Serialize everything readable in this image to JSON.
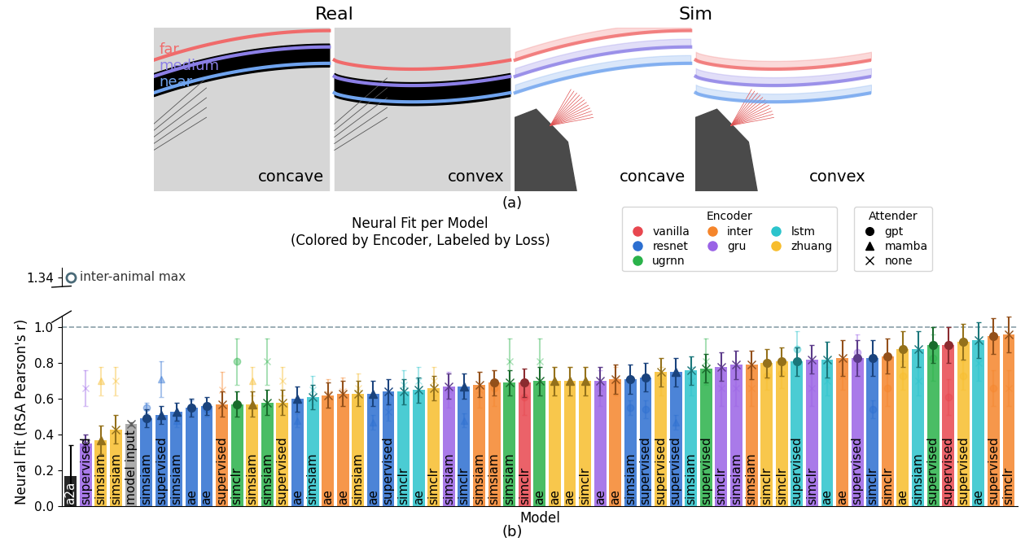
{
  "panel_a": {
    "caption": "(a)",
    "groups": [
      {
        "title": "Real",
        "images": [
          "concave",
          "convex"
        ]
      },
      {
        "title": "Sim",
        "images": [
          "concave",
          "convex"
        ]
      }
    ],
    "bands": [
      {
        "name": "far",
        "color": "#f06b6b"
      },
      {
        "name": "medium",
        "color": "#8b7fe6"
      },
      {
        "name": "near",
        "color": "#6fa3ee"
      }
    ]
  },
  "chart_data": {
    "type": "bar",
    "title": "Neural Fit per Model\n(Colored by Encoder, Labeled by Loss)",
    "caption": "(b)",
    "x_label": "Model",
    "y_label": "Neural Fit (RSA Pearson's r)",
    "tick_labels": "y",
    "legend": "upper right",
    "ylim": [
      0,
      1.06
    ],
    "yticks": [
      {
        "value": 0.0,
        "label": "0.0"
      },
      {
        "value": 0.2,
        "label": "0.2"
      },
      {
        "value": 0.4,
        "label": "0.4"
      },
      {
        "value": 0.6,
        "label": "0.6"
      },
      {
        "value": 0.8,
        "label": "0.8"
      },
      {
        "value": 1.0,
        "label": "1.0"
      }
    ],
    "reference_line": 1.0,
    "break_ylim": [
      1.3,
      1.38
    ],
    "break_yticks": [
      1.34
    ],
    "inter_animal_max": {
      "value": 1.34,
      "label": "inter-animal max"
    },
    "encoder_legend": {
      "title": "Encoder",
      "entries": [
        {
          "name": "vanilla",
          "color": "#e8474f"
        },
        {
          "name": "resnet",
          "color": "#2c6fd1"
        },
        {
          "name": "ugrnn",
          "color": "#2ab24a"
        },
        {
          "name": "inter",
          "color": "#f5852b"
        },
        {
          "name": "gru",
          "color": "#9a63e6"
        },
        {
          "name": "lstm",
          "color": "#2bc4cc"
        },
        {
          "name": "zhuang",
          "color": "#f7bd2d"
        }
      ]
    },
    "attender_legend": {
      "title": "Attender",
      "entries": [
        {
          "name": "gpt",
          "marker": "circle"
        },
        {
          "name": "mamba",
          "marker": "triangle"
        },
        {
          "name": "none",
          "marker": "x"
        }
      ]
    },
    "categories": [
      "a2a",
      "supervised",
      "simsiam",
      "simsiam",
      "model input",
      "simsiam",
      "supervised",
      "simsiam",
      "ae",
      "ae",
      "supervised",
      "simclr",
      "simsiam",
      "simsiam",
      "supervised",
      "ae",
      "simsiam",
      "ae",
      "ae",
      "simsiam",
      "ae",
      "supervised",
      "simclr",
      "ae",
      "simclr",
      "simsiam",
      "simclr",
      "simsiam",
      "simsiam",
      "simsiam",
      "simclr",
      "ae",
      "ae",
      "ae",
      "simclr",
      "ae",
      "ae",
      "simsiam",
      "supervised",
      "supervised",
      "supervised",
      "simsiam",
      "supervised",
      "simclr",
      "simsiam",
      "simsiam",
      "simclr",
      "simclr",
      "supervised",
      "simclr",
      "ae",
      "ae",
      "supervised",
      "simclr",
      "simclr",
      "ae",
      "simsiam",
      "supervised",
      "supervised",
      "supervised",
      "ae",
      "supervised",
      "simclr"
    ],
    "colors": [
      "#000000",
      "#9a63e6",
      "#f7bd2d",
      "#f7bd2d",
      "#9e9e9e",
      "#2c6fd1",
      "#2c6fd1",
      "#2c6fd1",
      "#2c6fd1",
      "#2c6fd1",
      "#f5852b",
      "#2ab24a",
      "#f7bd2d",
      "#2ab24a",
      "#f7bd2d",
      "#2c6fd1",
      "#2bc4cc",
      "#f5852b",
      "#f5852b",
      "#f7bd2d",
      "#2c6fd1",
      "#2c6fd1",
      "#2bc4cc",
      "#2bc4cc",
      "#f7bd2d",
      "#9a63e6",
      "#2c6fd1",
      "#f5852b",
      "#f5852b",
      "#2ab24a",
      "#e8474f",
      "#2ab24a",
      "#f7bd2d",
      "#f7bd2d",
      "#f7bd2d",
      "#9a63e6",
      "#f5852b",
      "#2c6fd1",
      "#2c6fd1",
      "#f7bd2d",
      "#2c6fd1",
      "#2bc4cc",
      "#2ab24a",
      "#9a63e6",
      "#9a63e6",
      "#f5852b",
      "#f7bd2d",
      "#f7bd2d",
      "#2bc4cc",
      "#9a63e6",
      "#2bc4cc",
      "#f5852b",
      "#9a63e6",
      "#2c6fd1",
      "#f5852b",
      "#f7bd2d",
      "#2bc4cc",
      "#2ab24a",
      "#e8474f",
      "#f7bd2d",
      "#2bc4cc",
      "#f5852b",
      "#f5852b"
    ],
    "attenders": [
      null,
      "none",
      "mamba",
      "none",
      "none",
      "gpt",
      "mamba",
      "mamba",
      "gpt",
      "gpt",
      "none",
      "gpt",
      "mamba",
      "none",
      "none",
      "mamba",
      "none",
      "none",
      "none",
      "none",
      "mamba",
      "none",
      "none",
      "none",
      "none",
      "none",
      "mamba",
      "none",
      "gpt",
      "none",
      "gpt",
      "none",
      "mamba",
      "mamba",
      "mamba",
      "none",
      "none",
      "gpt",
      "gpt",
      "none",
      "mamba",
      "none",
      "none",
      "none",
      "none",
      "none",
      "gpt",
      "gpt",
      "gpt",
      "none",
      "none",
      "none",
      "gpt",
      "gpt",
      "gpt",
      "gpt",
      "none",
      "gpt",
      "gpt",
      "gpt",
      "none",
      "gpt",
      "none"
    ],
    "values": [
      0.17,
      0.35,
      0.37,
      0.43,
      0.46,
      0.49,
      0.51,
      0.53,
      0.55,
      0.56,
      0.57,
      0.57,
      0.57,
      0.58,
      0.58,
      0.6,
      0.61,
      0.62,
      0.63,
      0.63,
      0.63,
      0.64,
      0.64,
      0.65,
      0.66,
      0.67,
      0.67,
      0.68,
      0.69,
      0.69,
      0.69,
      0.7,
      0.7,
      0.7,
      0.7,
      0.7,
      0.71,
      0.71,
      0.72,
      0.75,
      0.75,
      0.76,
      0.77,
      0.78,
      0.79,
      0.79,
      0.8,
      0.81,
      0.81,
      0.82,
      0.82,
      0.83,
      0.83,
      0.83,
      0.84,
      0.88,
      0.88,
      0.9,
      0.9,
      0.92,
      0.93,
      0.95,
      0.96
    ],
    "errors": [
      0.17,
      0.05,
      0.08,
      0.08,
      0.01,
      0.05,
      0.05,
      0.05,
      0.05,
      0.05,
      0.07,
      0.07,
      0.07,
      0.07,
      0.07,
      0.07,
      0.07,
      0.07,
      0.07,
      0.07,
      0.07,
      0.07,
      0.07,
      0.07,
      0.07,
      0.07,
      0.07,
      0.07,
      0.07,
      0.07,
      0.08,
      0.08,
      0.08,
      0.08,
      0.08,
      0.08,
      0.08,
      0.08,
      0.08,
      0.08,
      0.08,
      0.08,
      0.08,
      0.08,
      0.08,
      0.08,
      0.08,
      0.08,
      0.08,
      0.08,
      0.1,
      0.1,
      0.1,
      0.1,
      0.1,
      0.1,
      0.1,
      0.1,
      0.1,
      0.1,
      0.1,
      0.1,
      0.1
    ],
    "secondary_values": [
      null,
      0.66,
      0.7,
      0.7,
      null,
      0.55,
      0.71,
      0.48,
      0.55,
      0.54,
      0.65,
      0.81,
      0.7,
      0.81,
      0.7,
      0.48,
      0.65,
      0.63,
      0.64,
      0.66,
      0.47,
      0.53,
      0.68,
      0.7,
      0.7,
      0.65,
      0.48,
      0.65,
      0.66,
      0.81,
      0.61,
      0.81,
      0.7,
      0.7,
      0.7,
      0.66,
      0.7,
      0.55,
      0.54,
      0.7,
      0.47,
      0.7,
      0.81,
      0.66,
      0.66,
      0.66,
      0.73,
      0.74,
      0.88,
      0.66,
      0.7,
      0.73,
      0.86,
      0.54,
      0.66,
      0.73,
      0.7,
      0.83,
      0.61,
      0.73,
      0.8,
      0.66,
      0.66
    ],
    "secondary_errors": [
      null,
      0.1,
      0.08,
      0.08,
      null,
      0.03,
      0.1,
      0.04,
      0.04,
      0.04,
      0.1,
      0.13,
      0.08,
      0.13,
      0.08,
      0.04,
      0.08,
      0.08,
      0.08,
      0.08,
      0.04,
      0.05,
      0.08,
      0.08,
      0.08,
      0.1,
      0.04,
      0.1,
      0.1,
      0.13,
      0.1,
      0.13,
      0.08,
      0.08,
      0.08,
      0.1,
      0.08,
      0.04,
      0.05,
      0.08,
      0.04,
      0.08,
      0.13,
      0.1,
      0.1,
      0.1,
      0.08,
      0.08,
      0.1,
      0.1,
      0.08,
      0.08,
      0.1,
      0.05,
      0.1,
      0.08,
      0.08,
      0.13,
      0.1,
      0.08,
      0.1,
      0.1,
      0.1
    ]
  }
}
